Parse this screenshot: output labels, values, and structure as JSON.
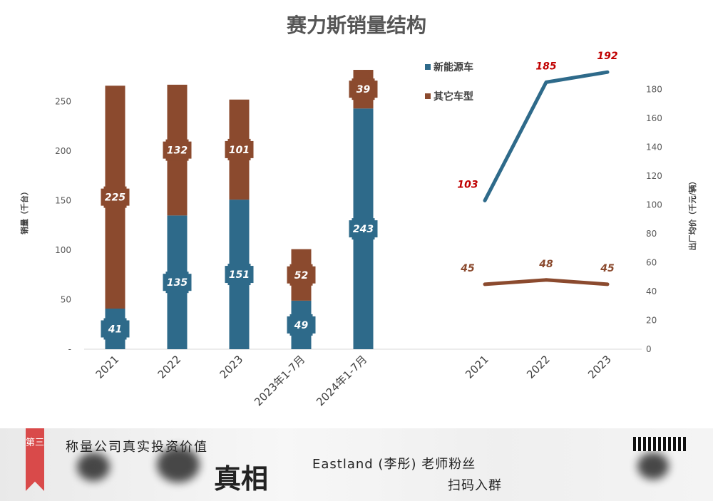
{
  "chart_data": [
    {
      "type": "bar",
      "stacked": true,
      "title": "赛力斯销量结构",
      "ylabel": "销量（千台）",
      "ylim": [
        0,
        280
      ],
      "yticks": [
        "-",
        "50",
        "100",
        "150",
        "200",
        "250"
      ],
      "categories": [
        "2021",
        "2022",
        "2023",
        "2023年1-7月",
        "2024年1-7月"
      ],
      "series": [
        {
          "name": "新能源车",
          "color": "#2e6a8a",
          "values": [
            41,
            135,
            151,
            49,
            243
          ]
        },
        {
          "name": "其它车型",
          "color": "#8b4a2e",
          "values": [
            225,
            132,
            101,
            52,
            39
          ]
        }
      ],
      "legend": "top-right"
    },
    {
      "type": "line",
      "ylabel": "出厂均价（千元/辆）",
      "ylim": [
        0,
        200
      ],
      "yticks": [
        "0",
        "20",
        "40",
        "60",
        "80",
        "100",
        "120",
        "140",
        "160",
        "180"
      ],
      "x": [
        "2021",
        "2022",
        "2023"
      ],
      "series": [
        {
          "name": "新能源车",
          "color": "#2e6a8a",
          "label_color": "#c00000",
          "values": [
            103,
            185,
            192
          ]
        },
        {
          "name": "其它车型",
          "color": "#8b4a2e",
          "label_color": "#8b4a2e",
          "values": [
            45,
            48,
            45
          ]
        }
      ]
    }
  ],
  "banner": {
    "tag": "第三",
    "line1": "称量公司真实投资价值",
    "big": "真相",
    "right1": "Eastland (李彤) 老师粉丝",
    "right2": "扫码入群"
  }
}
